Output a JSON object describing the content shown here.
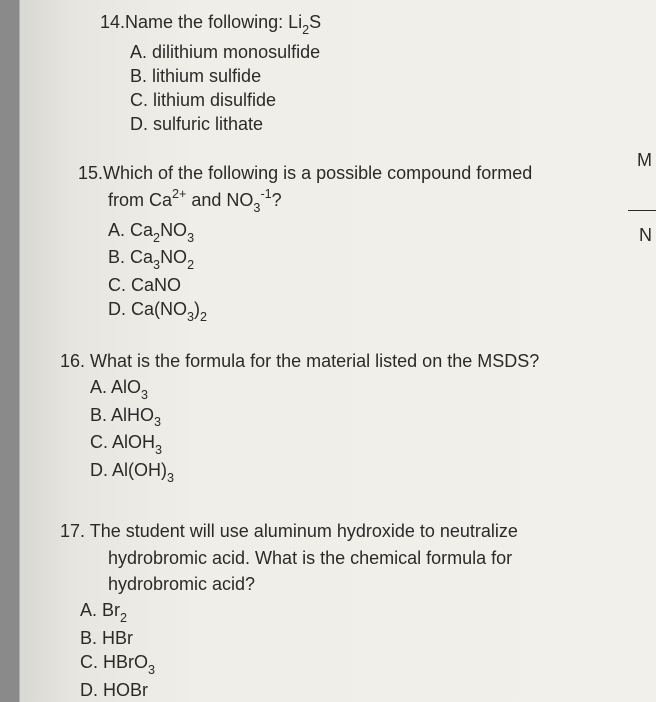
{
  "page": {
    "background_gradient": [
      "#8a8a8a",
      "#d8d8d4",
      "#e8e6e0",
      "#f2f0ea"
    ],
    "text_color": "#2a2a2a",
    "font_family": "Century Gothic",
    "body_fontsize": 18
  },
  "q14": {
    "number": "14.",
    "stem": "Name the following: Li",
    "stem_sub": "2",
    "stem_after": "S",
    "options": {
      "A": {
        "letter": "A.",
        "text": "dilithium monosulfide"
      },
      "B": {
        "letter": "B.",
        "text": "lithium sulfide"
      },
      "C": {
        "letter": "C.",
        "text": "lithium disulfide"
      },
      "D": {
        "letter": "D.",
        "text": "sulfuric lithate"
      }
    }
  },
  "q15": {
    "number": "15.",
    "stem": "Which of the following is a possible compound formed",
    "stem2_a": "from Ca",
    "stem2_sup1": "2+",
    "stem2_b": " and NO",
    "stem2_sub": "3",
    "stem2_sup2": "-1",
    "stem2_c": "?",
    "options": {
      "A": {
        "letter": "A.",
        "pre": "Ca",
        "sub1": "2",
        "mid": "NO",
        "sub2": "3"
      },
      "B": {
        "letter": "B.",
        "pre": "Ca",
        "sub1": "3",
        "mid": "NO",
        "sub2": "2"
      },
      "C": {
        "letter": "C.",
        "text": "CaNO"
      },
      "D": {
        "letter": "D.",
        "pre": "Ca(NO",
        "sub1": "3",
        "mid": ")",
        "sub2": "2"
      }
    }
  },
  "q16": {
    "number": "16.",
    "stem": "What is the formula for the material listed on the MSDS?",
    "options": {
      "A": {
        "letter": "A.",
        "pre": "AlO",
        "sub": "3"
      },
      "B": {
        "letter": "B.",
        "pre": "AlHO",
        "sub": "3"
      },
      "C": {
        "letter": "C.",
        "pre": "AlOH",
        "sub": "3"
      },
      "D": {
        "letter": "D.",
        "pre": "Al(OH)",
        "sub": "3"
      }
    }
  },
  "q17": {
    "number": "17.",
    "stem": "The student will use aluminum hydroxide to neutralize",
    "stem2": "hydrobromic acid.  What is the chemical formula for",
    "stem3": "hydrobromic acid?",
    "options": {
      "A": {
        "letter": "A.",
        "pre": "Br",
        "sub": "2"
      },
      "B": {
        "letter": "B.",
        "text": "HBr"
      },
      "C": {
        "letter": "C.",
        "pre": "HBrO",
        "sub": "3"
      },
      "D": {
        "letter": "D.",
        "text": "HOBr"
      }
    }
  },
  "margin": {
    "clip1": "M",
    "clip2": "N"
  }
}
